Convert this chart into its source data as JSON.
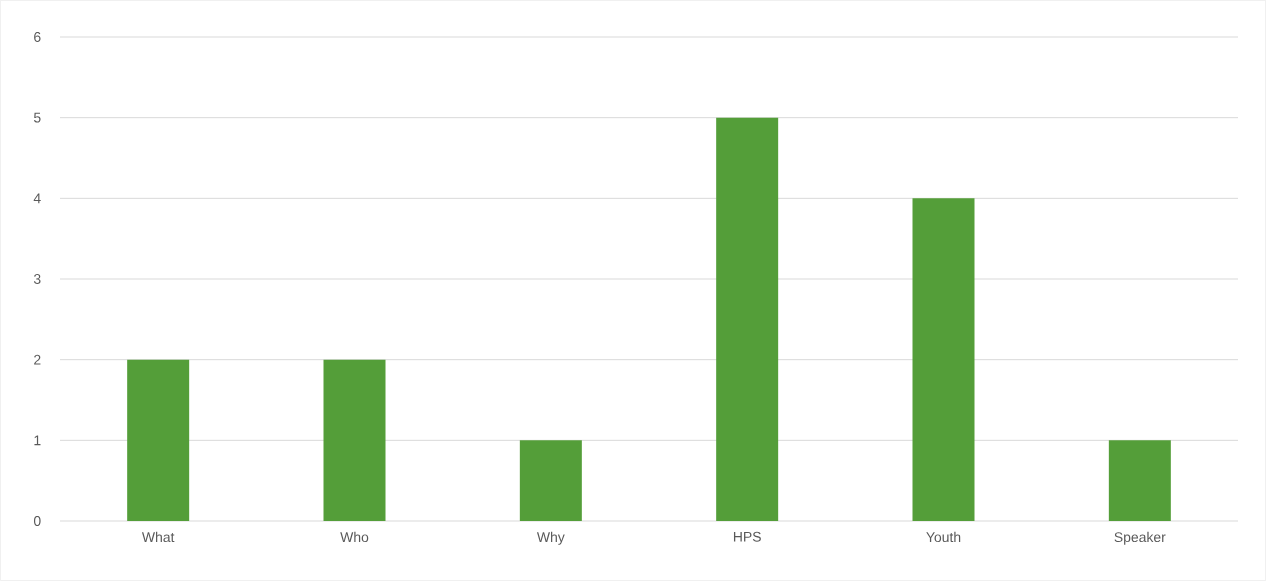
{
  "chart_data": {
    "type": "bar",
    "categories": [
      "What",
      "Who",
      "Why",
      "HPS",
      "Youth",
      "Speaker"
    ],
    "values": [
      2,
      2,
      1,
      5,
      4,
      1
    ],
    "color": "#549e39",
    "ylim": [
      0,
      6
    ],
    "yticks": [
      0,
      1,
      2,
      3,
      4,
      5,
      6
    ],
    "grid": "y"
  }
}
